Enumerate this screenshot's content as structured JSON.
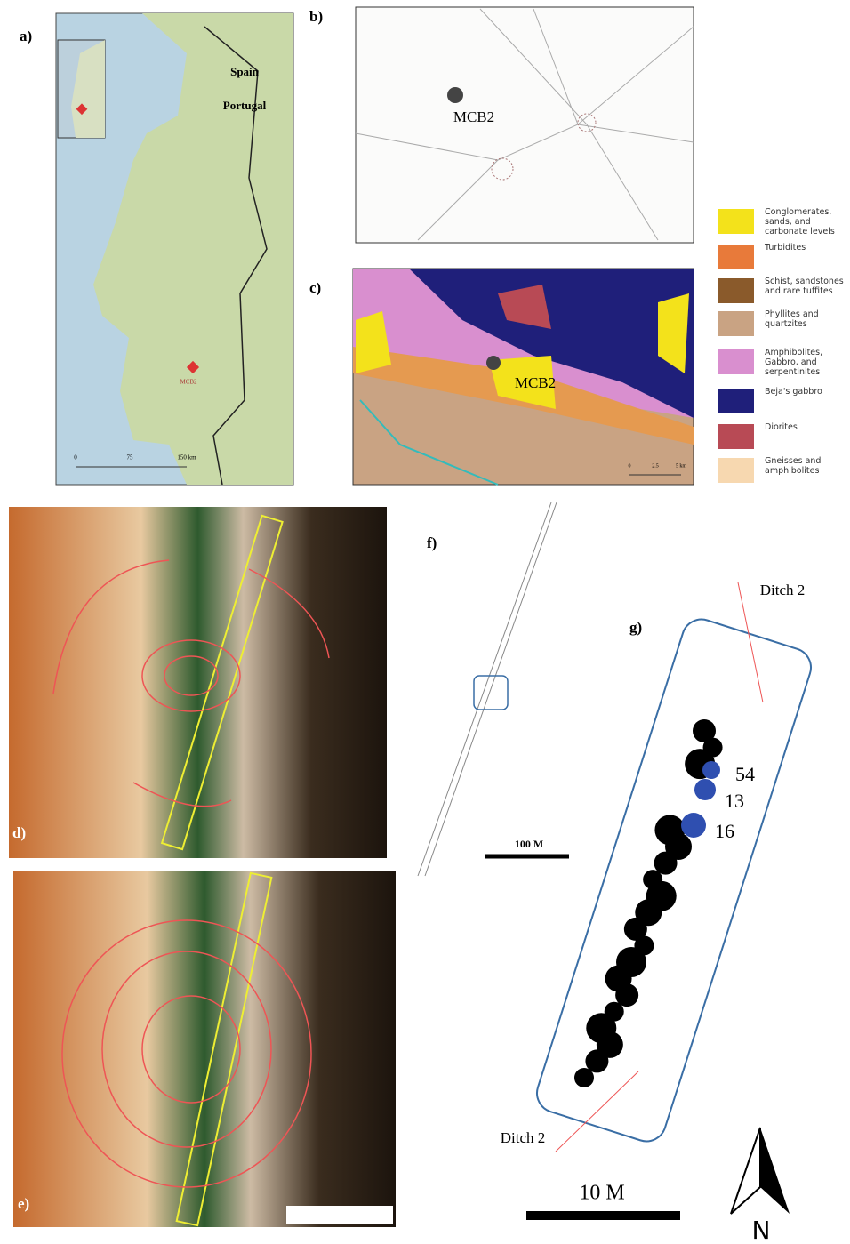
{
  "panel_labels": [
    "a)",
    "b)",
    "c)",
    "d)",
    "e)",
    "f)",
    "g)"
  ],
  "map_a": {
    "labels": [
      "Spain",
      "Portugal",
      "MCB2"
    ],
    "scale": [
      "0",
      "75",
      "150 km"
    ]
  },
  "map_b": {
    "site": "MCB2"
  },
  "map_c": {
    "site": "MCB2",
    "scale": [
      "0",
      "2.5",
      "5 km"
    ]
  },
  "legend": [
    "Conglomerates, sands, and carbonate levels",
    "Turbidites",
    "Schist, sandstones and rare tuffites",
    "Phyllites and quartzites",
    "Amphibolites, Gabbro, and serpentinites",
    "Beja's gabbro",
    "Diorites",
    "Gneisses and amphibolites"
  ],
  "plan_f": {
    "scale": "100 M"
  },
  "plan_g": {
    "ditch_labels": [
      "Ditch 2",
      "Ditch 2"
    ],
    "features": [
      "54",
      "13",
      "16"
    ],
    "scale": "10 M",
    "north": "N"
  }
}
